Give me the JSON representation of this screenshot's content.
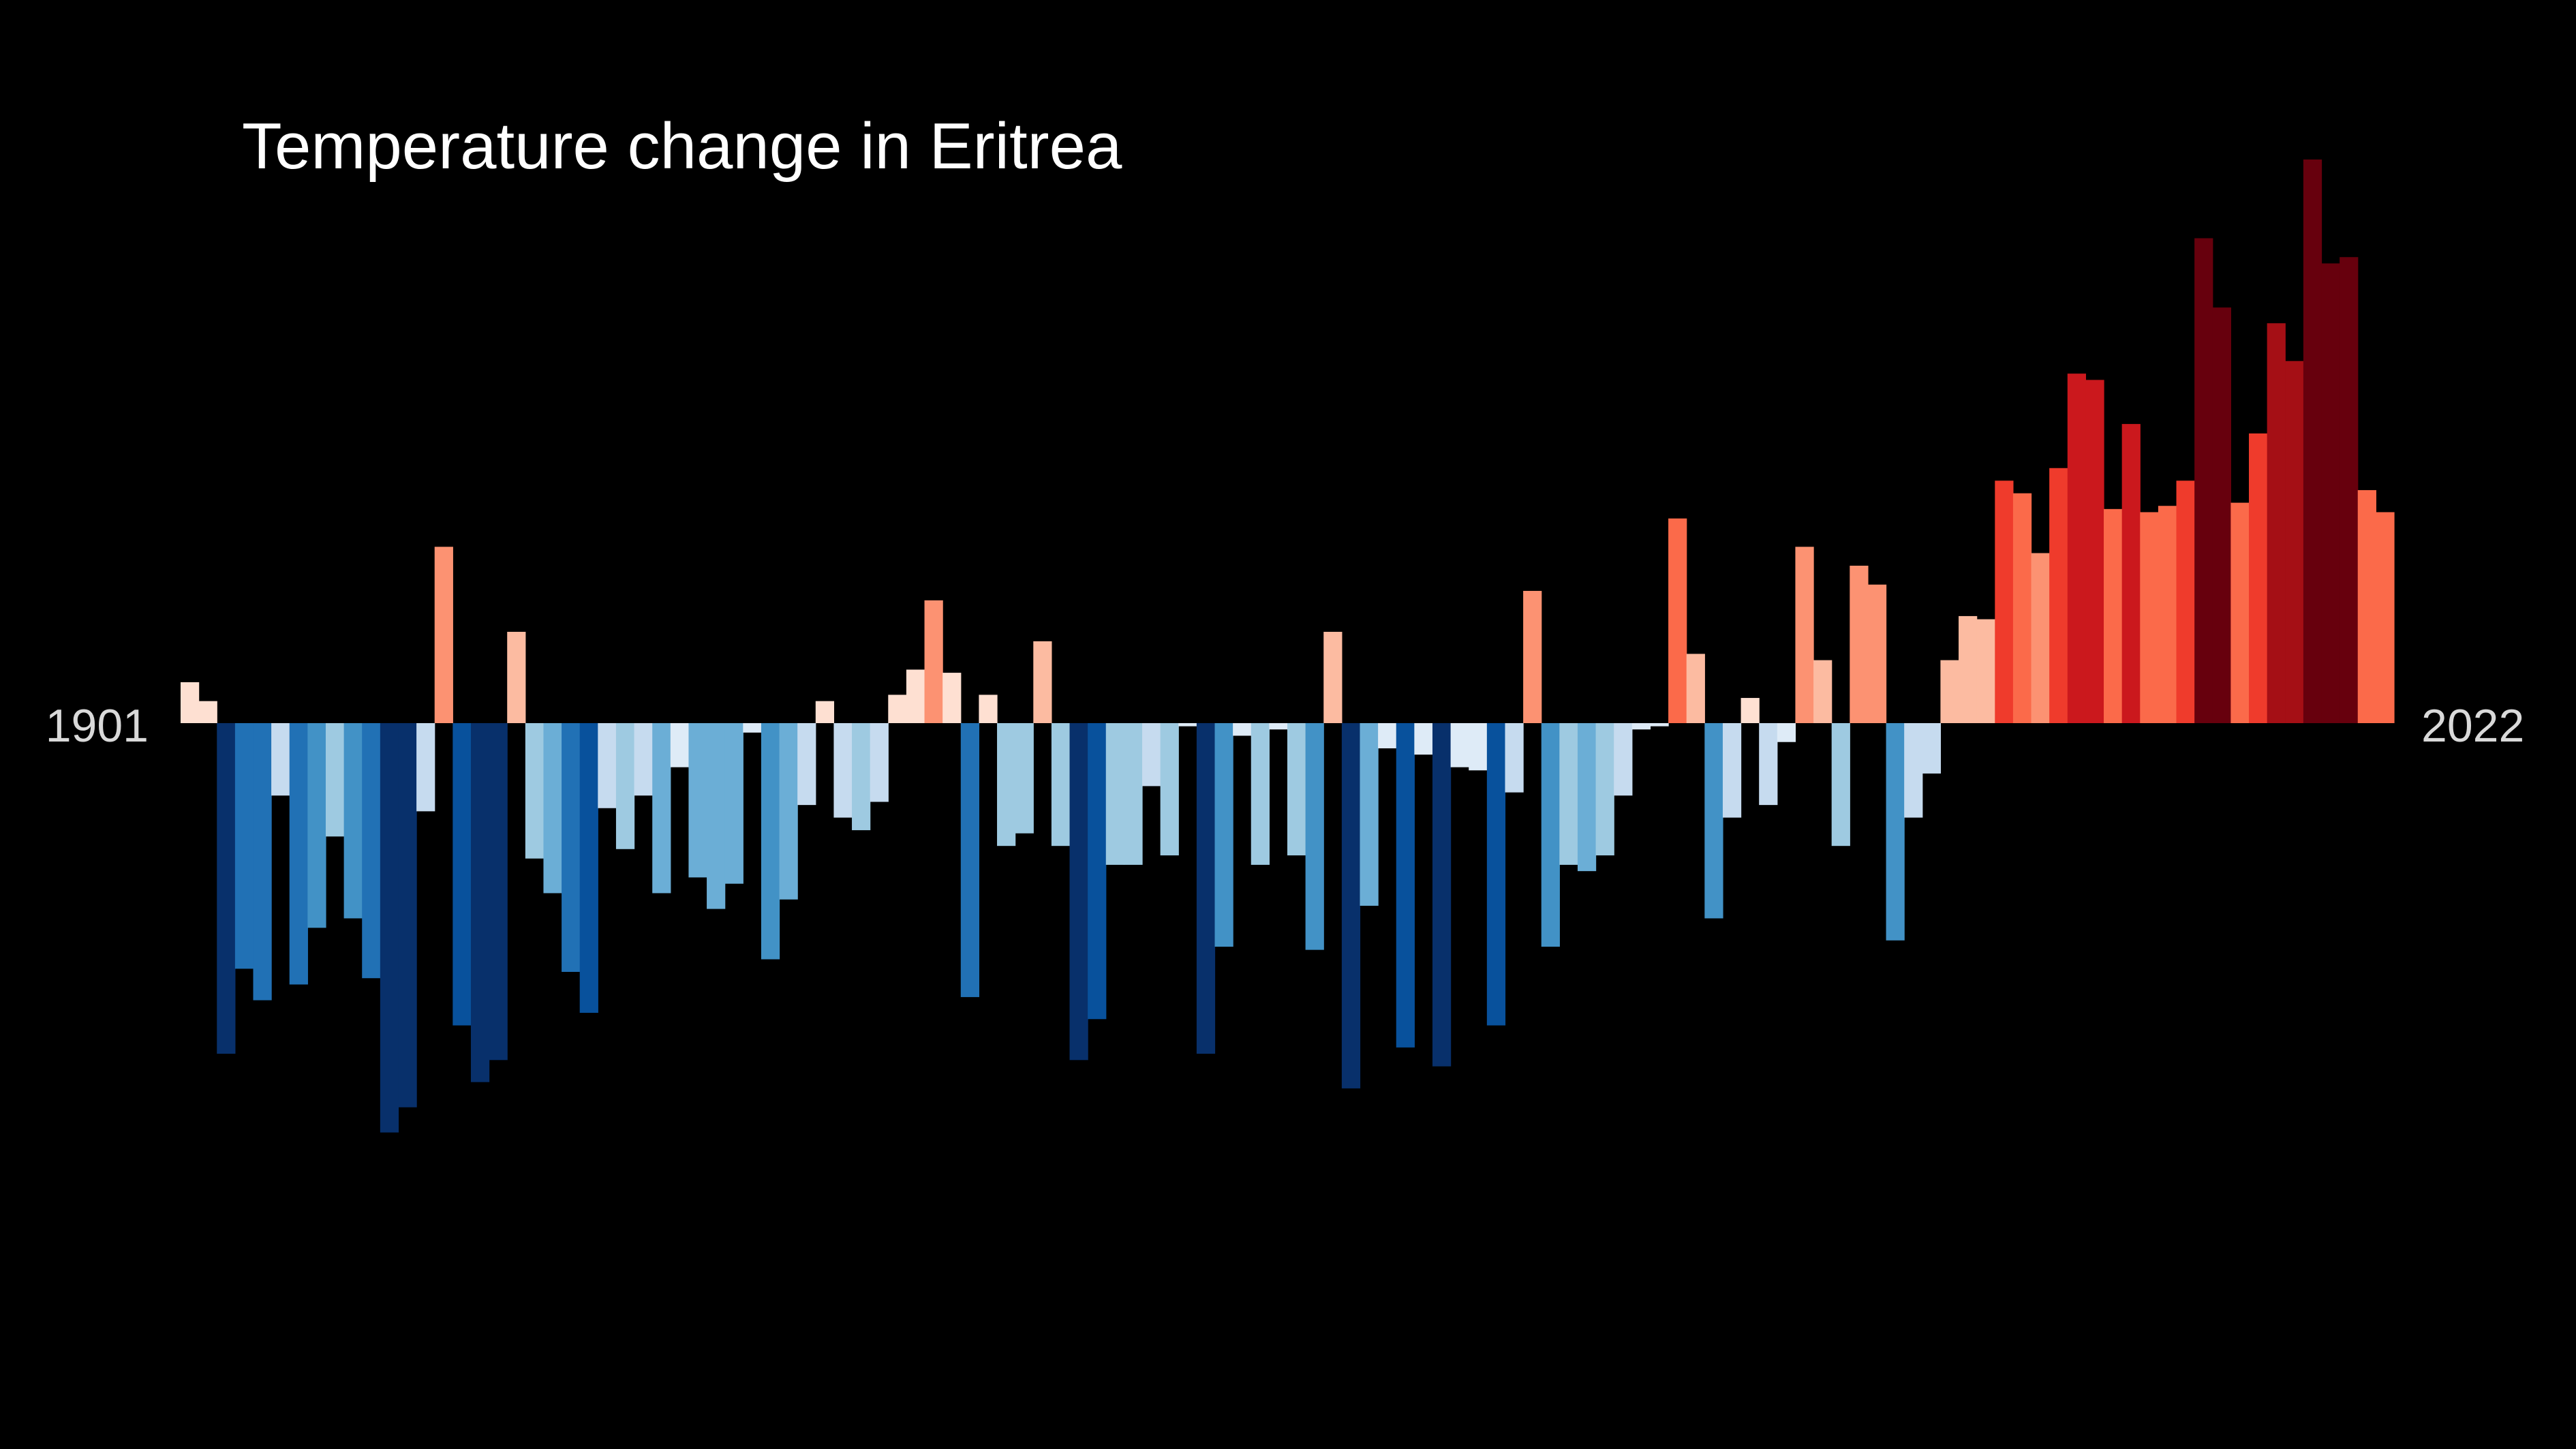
{
  "chart_data": {
    "type": "bar",
    "title": "Temperature change in Eritrea",
    "start_label": "1901",
    "end_label": "2022",
    "x_start": 1901,
    "x_end": 2022,
    "ylim": [
      -1.3,
      1.8
    ],
    "grid": false,
    "legend": "none",
    "values": [
      0.13,
      0.07,
      -1.05,
      -0.78,
      -0.88,
      -0.23,
      -0.83,
      -0.65,
      -0.36,
      -0.62,
      -0.81,
      -1.3,
      -1.22,
      -0.28,
      0.56,
      -0.96,
      -1.14,
      -1.07,
      0.29,
      -0.43,
      -0.54,
      -0.79,
      -0.92,
      -0.27,
      -0.4,
      -0.23,
      -0.54,
      -0.14,
      -0.49,
      -0.59,
      -0.51,
      -0.03,
      -0.75,
      -0.56,
      -0.26,
      0.07,
      -0.3,
      -0.34,
      -0.25,
      0.09,
      0.17,
      0.39,
      0.16,
      -0.87,
      0.09,
      -0.39,
      -0.35,
      0.26,
      -0.39,
      -1.07,
      -0.94,
      -0.45,
      -0.45,
      -0.2,
      -0.42,
      -0.01,
      -1.05,
      -0.71,
      -0.04,
      -0.45,
      -0.02,
      -0.42,
      -0.72,
      0.29,
      -1.16,
      -0.58,
      -0.08,
      -1.03,
      -0.1,
      -1.09,
      -0.14,
      -0.15,
      -0.96,
      -0.22,
      0.42,
      -0.71,
      -0.45,
      -0.47,
      -0.42,
      -0.23,
      -0.02,
      -0.01,
      0.65,
      0.22,
      -0.62,
      -0.3,
      0.08,
      -0.26,
      -0.06,
      0.56,
      0.2,
      -0.39,
      0.5,
      0.44,
      -0.69,
      -0.3,
      -0.16,
      0.2,
      0.34,
      0.33,
      0.77,
      0.73,
      0.54,
      0.81,
      1.11,
      1.09,
      0.68,
      0.95,
      0.67,
      0.69,
      0.77,
      1.54,
      1.32,
      0.7,
      0.92,
      1.27,
      1.15,
      1.79,
      1.46,
      1.48,
      0.74,
      0.67
    ]
  },
  "palette": {
    "background": "#000000",
    "cold": [
      "#08306b",
      "#08519c",
      "#2171b5",
      "#4292c6",
      "#6baed6",
      "#9ecae1",
      "#c6dbef",
      "#deebf7"
    ],
    "warm": [
      "#fee0d2",
      "#fcbba1",
      "#fc9272",
      "#fb6a4a",
      "#ef3b2c",
      "#cb181d",
      "#a50f15",
      "#67000d"
    ]
  }
}
